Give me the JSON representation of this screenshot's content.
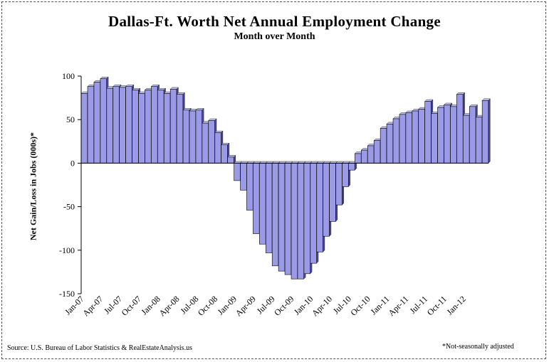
{
  "chart_data": {
    "type": "bar",
    "title": "Dallas-Ft. Worth Net Annual Employment Change",
    "subtitle": "Month over Month",
    "xlabel": "",
    "ylabel": "Net Gain/Loss in Jobs (000s)*",
    "ylim": [
      -150,
      100
    ],
    "yticks": [
      100,
      50,
      0,
      -50,
      -100,
      -150
    ],
    "grid": false,
    "legend": "none",
    "bar_color": "#9a9ae6",
    "bar_edge_color": "#000000",
    "categories": [
      "Jan-07",
      "Feb-07",
      "Mar-07",
      "Apr-07",
      "May-07",
      "Jun-07",
      "Jul-07",
      "Aug-07",
      "Sep-07",
      "Oct-07",
      "Nov-07",
      "Dec-07",
      "Jan-08",
      "Feb-08",
      "Mar-08",
      "Apr-08",
      "May-08",
      "Jun-08",
      "Jul-08",
      "Aug-08",
      "Sep-08",
      "Oct-08",
      "Nov-08",
      "Dec-08",
      "Jan-09",
      "Feb-09",
      "Mar-09",
      "Apr-09",
      "May-09",
      "Jun-09",
      "Jul-09",
      "Aug-09",
      "Sep-09",
      "Oct-09",
      "Nov-09",
      "Dec-09",
      "Jan-10",
      "Feb-10",
      "Mar-10",
      "Apr-10",
      "May-10",
      "Jun-10",
      "Jul-10",
      "Aug-10",
      "Sep-10",
      "Oct-10",
      "Nov-10",
      "Dec-10",
      "Jan-11",
      "Feb-11",
      "Mar-11",
      "Apr-11",
      "May-11",
      "Jun-11",
      "Jul-11",
      "Aug-11",
      "Sep-11",
      "Oct-11",
      "Nov-11",
      "Dec-11",
      "Jan-12",
      "Feb-12"
    ],
    "xtick_labels": [
      "Jan-07",
      "Apr-07",
      "Jul-07",
      "Oct-07",
      "Jan-08",
      "Apr-08",
      "Jul-08",
      "Oct-08",
      "Jan-09",
      "Apr-09",
      "Jul-09",
      "Oct-09",
      "Jan-10",
      "Apr-10",
      "Jul-10",
      "Oct-10",
      "Jan-11",
      "Apr-11",
      "Jul-11",
      "Oct-11",
      "Jan-12"
    ],
    "values": [
      80,
      88,
      93,
      97,
      86,
      88,
      87,
      88,
      84,
      80,
      84,
      88,
      84,
      80,
      85,
      79,
      61,
      60,
      61,
      46,
      49,
      35,
      21,
      7,
      -20,
      -31,
      -54,
      -81,
      -93,
      -103,
      -118,
      -124,
      -128,
      -133,
      -133,
      -127,
      -115,
      -102,
      -84,
      -67,
      -48,
      -27,
      -8,
      11,
      15,
      20,
      26,
      40,
      45,
      51,
      56,
      58,
      60,
      62,
      71,
      57,
      64,
      67,
      65,
      79,
      55,
      65
    ],
    "extra_values": [
      53,
      72
    ]
  },
  "source": "Source: U.S. Bureau of Labor Statistics & RealEstateAnalysis.us",
  "footnote": "*Not-seasonally adjusted"
}
